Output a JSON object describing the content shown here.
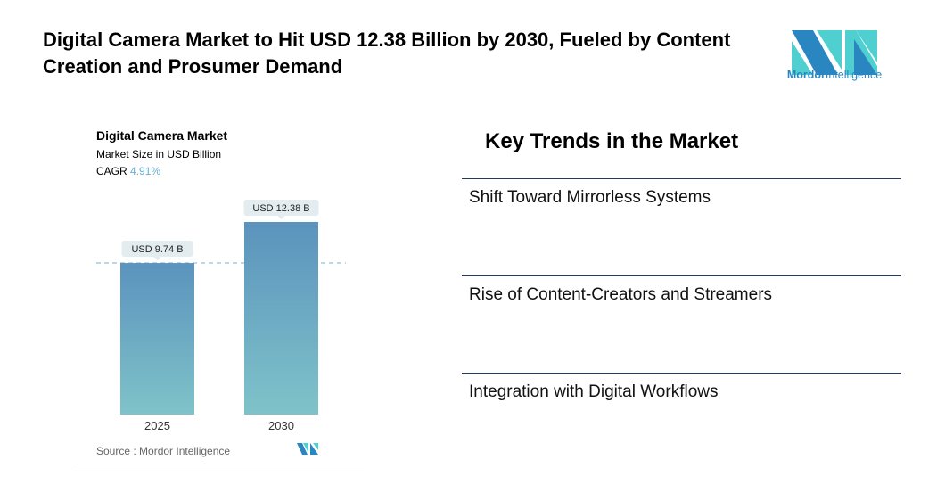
{
  "header": {
    "title": "Digital Camera Market to Hit USD 12.38 Billion by 2030, Fueled by Content Creation and Prosumer Demand",
    "logo_text": "Mordor Intelligence",
    "logo_text_bold": "Mordor",
    "logo_text_rest": "Intelligence"
  },
  "chart_data": {
    "type": "bar",
    "title": "Digital Camera Market",
    "subtitle": "Market Size in USD Billion",
    "cagr_label": "CAGR",
    "cagr_value": "4.91%",
    "categories": [
      "2025",
      "2030"
    ],
    "values": [
      9.74,
      12.38
    ],
    "data_labels": [
      "USD 9.74 B",
      "USD 12.38 B"
    ],
    "ylim": [
      0,
      12.38
    ],
    "reference_line": 9.74,
    "source": "Source :  Mordor Intelligence",
    "colors": {
      "bar_top": "#5b93bd",
      "bar_bottom": "#7fc3c9",
      "cagr": "#6aaed0",
      "label_bg": "#e3ecef"
    }
  },
  "trends": {
    "title": "Key Trends in the Market",
    "items": [
      "Shift Toward Mirrorless Systems",
      "Rise of Content-Creators and Streamers",
      "Integration with Digital Workflows"
    ]
  },
  "colors": {
    "logo_dark": "#2a86c0",
    "logo_light": "#4fcfcf",
    "rule": "#1f3a63"
  }
}
